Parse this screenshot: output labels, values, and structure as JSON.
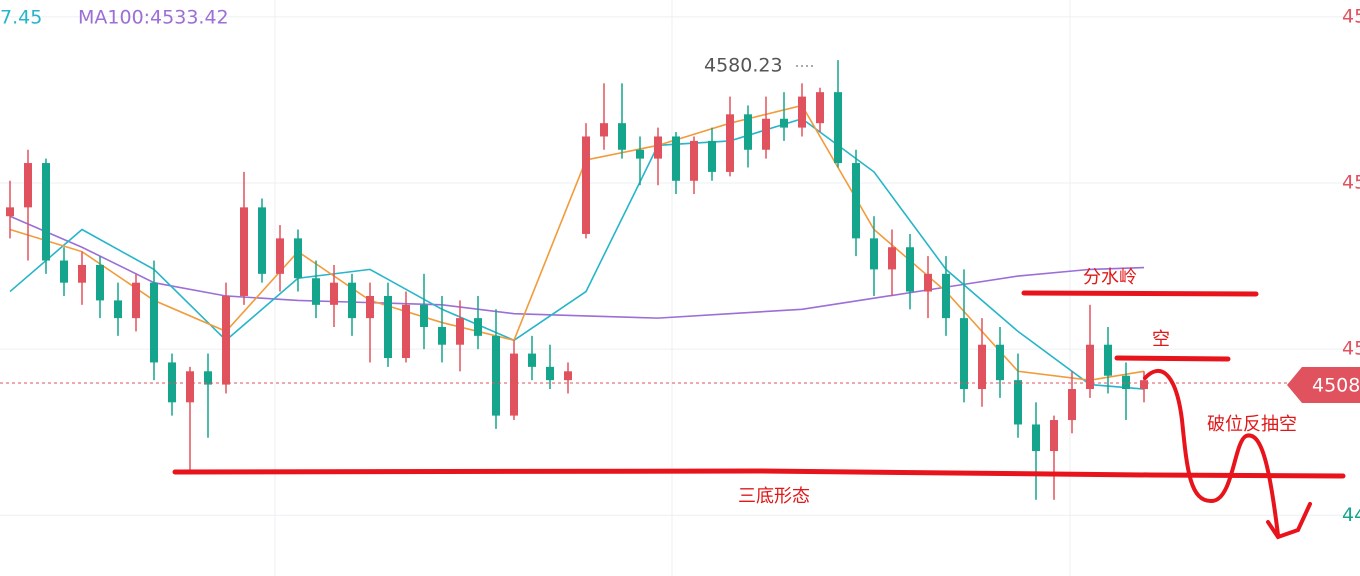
{
  "chart_data": {
    "type": "candlestick",
    "header_labels": [
      {
        "text": "7.45",
        "color": "#26b5c9"
      },
      {
        "text": "MA100:4533.42",
        "color": "#9b6fd6"
      }
    ],
    "up_color": "#e0525e",
    "down_color": "#14a58c",
    "candles": {
      "open": [
        4545,
        4547,
        4557,
        4535,
        4530,
        4534,
        4526,
        4522,
        4530,
        4512,
        4503,
        4510,
        4507,
        4527,
        4547,
        4532,
        4540,
        4531,
        4525,
        4530,
        4522,
        4527,
        4513,
        4525,
        4520,
        4516,
        4522,
        4518,
        4500,
        4514,
        4511,
        4508,
        4541,
        4563,
        4566,
        4560,
        4558,
        4563,
        4553,
        4562,
        4555,
        4568,
        4560,
        4567,
        4565,
        4566,
        4573,
        4557,
        4540,
        4533,
        4538,
        4528,
        4532,
        4522,
        4506,
        4516,
        4508,
        4498,
        4492,
        4499,
        4506,
        4516,
        4509,
        4506
      ],
      "high": [
        4553,
        4560,
        4558,
        4538,
        4537,
        4536,
        4530,
        4532,
        4535,
        4514,
        4511,
        4514,
        4530,
        4555,
        4549,
        4543,
        4542,
        4535,
        4534,
        4532,
        4530,
        4530,
        4528,
        4532,
        4527,
        4526,
        4527,
        4524,
        4517,
        4518,
        4516,
        4512,
        4566,
        4575,
        4575,
        4563,
        4565,
        4564,
        4563,
        4565,
        4572,
        4570,
        4572,
        4573,
        4575,
        4574,
        4580.23,
        4560,
        4545,
        4542,
        4541,
        4536,
        4536,
        4533,
        4522,
        4520,
        4514,
        4503,
        4500,
        4510,
        4525,
        4520,
        4512,
        4510
      ],
      "low": [
        4540,
        4535,
        4532,
        4527,
        4525,
        4522,
        4518,
        4519,
        4508,
        4500,
        4487,
        4495,
        4505,
        4525,
        4530,
        4528,
        4528,
        4522,
        4520,
        4518,
        4512,
        4511,
        4512,
        4515,
        4512,
        4510,
        4515,
        4497,
        4499,
        4508,
        4506,
        4505,
        4540,
        4560,
        4558,
        4552,
        4552,
        4550,
        4550,
        4553,
        4554,
        4556,
        4558,
        4562,
        4563,
        4564,
        4556,
        4536,
        4527,
        4527,
        4524,
        4522,
        4518,
        4503,
        4502,
        4504,
        4495,
        4481,
        4481,
        4496,
        4504,
        4505,
        4499,
        4503
      ],
      "close": [
        4547,
        4557,
        4535,
        4530,
        4534,
        4526,
        4522,
        4530,
        4512,
        4503,
        4510,
        4507,
        4527,
        4547,
        4532,
        4540,
        4531,
        4525,
        4530,
        4522,
        4527,
        4513,
        4525,
        4520,
        4516,
        4522,
        4518,
        4500,
        4514,
        4511,
        4508,
        4510,
        4563,
        4566,
        4560,
        4558,
        4563,
        4553,
        4562,
        4555,
        4568,
        4560,
        4567,
        4565,
        4572,
        4573,
        4557,
        4540,
        4533,
        4538,
        4528,
        4532,
        4522,
        4506,
        4516,
        4508,
        4498,
        4492,
        4499,
        4506,
        4516,
        4509,
        4506,
        4508
      ]
    },
    "lines": [
      {
        "color": "#9b6fd6",
        "x": [
          0,
          4,
          8,
          12,
          16,
          20,
          24,
          28,
          32,
          36,
          40,
          44,
          48,
          52,
          56,
          60,
          63
        ],
        "values": [
          4545,
          4538,
          4530,
          4527,
          4526,
          4525.5,
          4525,
          4523,
          4522.5,
          4522,
          4523,
          4524,
          4526.5,
          4529,
          4531.5,
          4533,
          4533.42
        ]
      },
      {
        "color": "#26b5c9",
        "x": [
          0,
          4,
          8,
          12,
          16,
          20,
          24,
          28,
          32,
          36,
          40,
          44,
          48,
          52,
          56,
          60,
          63
        ],
        "values": [
          4528,
          4542,
          4533,
          4517,
          4531,
          4533,
          4524,
          4517,
          4528,
          4561,
          4562,
          4567,
          4555,
          4533,
          4519,
          4507,
          4506
        ]
      },
      {
        "color": "#f39a3a",
        "x": [
          0,
          4,
          8,
          12,
          16,
          20,
          24,
          28,
          32,
          36,
          40,
          44,
          48,
          52,
          56,
          60,
          63
        ],
        "values": [
          4542,
          4537,
          4526,
          4519,
          4537,
          4526,
          4521,
          4517,
          4557.7,
          4561,
          4566,
          4570,
          4542,
          4528,
          4510,
          4508,
          4510
        ]
      }
    ],
    "ylim": [
      4463.8,
      4593.8
    ],
    "yticks": [
      {
        "value": 4590,
        "label": "45"
      },
      {
        "value": 4552.5,
        "label": "45"
      },
      {
        "value": 4515,
        "label": "45"
      },
      {
        "value": 4477.5,
        "label": "44"
      }
    ],
    "high_label": "4580.23",
    "last_price_label": "4508",
    "annotations": [
      "分水岭",
      "空",
      "破位反抽空",
      "三底形态"
    ]
  }
}
